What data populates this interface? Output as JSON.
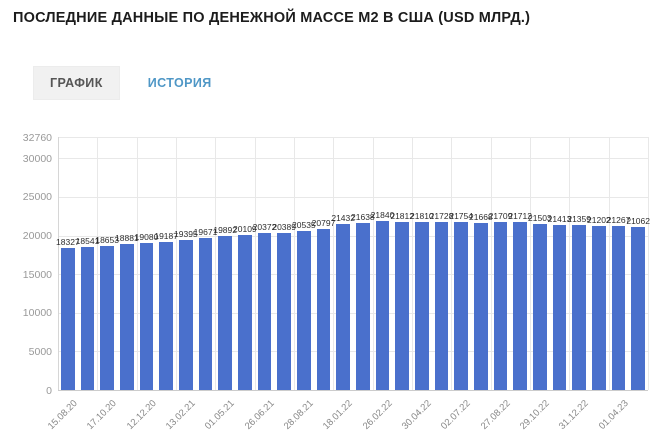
{
  "page": {
    "title": "ПОСЛЕДНИЕ ДАННЫЕ ПО ДЕНЕЖНОЙ МАССЕ М2 В США (USD МЛРД.)"
  },
  "tabs": [
    {
      "label": "ГРАФИК",
      "active": true
    },
    {
      "label": "ИСТОРИЯ",
      "active": false
    }
  ],
  "chart_data": {
    "type": "bar",
    "title": "ПОСЛЕДНИЕ ДАННЫЕ ПО ДЕНЕЖНОЙ МАССЕ М2 В США (USD МЛРД.)",
    "values": [
      18327,
      18541,
      18653,
      18881,
      19080,
      19187,
      19395,
      19671,
      19892,
      20109,
      20372,
      20389,
      20535,
      20797,
      21432,
      21638,
      21840,
      21812,
      21810,
      21728,
      21754,
      21668,
      21709,
      21712,
      21503,
      21413,
      21359,
      21202,
      21267,
      21062
    ],
    "x_tick_labels": [
      "15.08.20",
      "17.10.20",
      "12.12.20",
      "13.02.21",
      "01.05.21",
      "26.06.21",
      "28.08.21",
      "18.01.22",
      "26.02.22",
      "30.04.22",
      "02.07.22",
      "27.08.22",
      "29.10.22",
      "31.12.22",
      "01.04.23"
    ],
    "x_tick_every": 2,
    "y_ticks": [
      0,
      5000,
      10000,
      15000,
      20000,
      25000,
      30000,
      32760
    ],
    "ylim": [
      0,
      32760
    ],
    "xlabel": "",
    "ylabel": "",
    "grid": true,
    "legend": "none",
    "bar_color": "#4a70cc",
    "value_labels_shown": true
  }
}
